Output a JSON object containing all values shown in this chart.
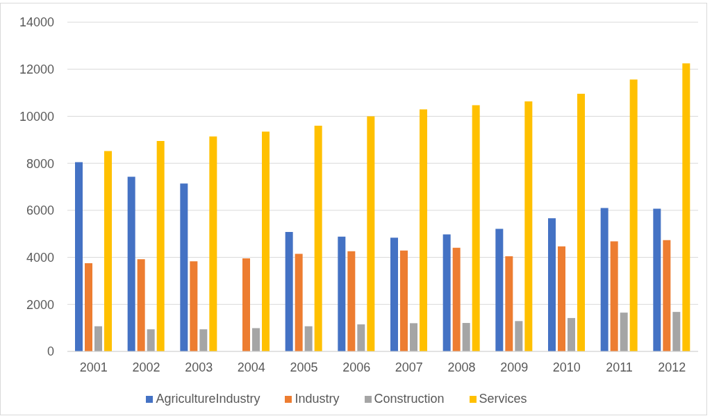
{
  "chart_data": {
    "type": "bar",
    "categories": [
      "2001",
      "2002",
      "2003",
      "2004",
      "2005",
      "2006",
      "2007",
      "2008",
      "2009",
      "2010",
      "2011",
      "2012"
    ],
    "series": [
      {
        "name": "AgricultureIndustry",
        "color": "#4472c4",
        "values": [
          8050,
          7430,
          7140,
          null,
          5080,
          4880,
          4840,
          4980,
          5210,
          5660,
          6100,
          6070
        ]
      },
      {
        "name": "Industry",
        "color": "#ed7d31",
        "values": [
          3750,
          3920,
          3830,
          3960,
          4150,
          4260,
          4290,
          4410,
          4050,
          4470,
          4680,
          4730
        ]
      },
      {
        "name": "Construction",
        "color": "#a5a5a5",
        "values": [
          1070,
          940,
          940,
          990,
          1070,
          1150,
          1200,
          1210,
          1290,
          1420,
          1650,
          1680
        ]
      },
      {
        "name": "Services",
        "color": "#ffc000",
        "values": [
          8520,
          8950,
          9140,
          9350,
          9600,
          10000,
          10290,
          10470,
          10630,
          10960,
          11560,
          12250
        ]
      }
    ],
    "ylim": [
      0,
      14000
    ],
    "yticks": [
      0,
      2000,
      4000,
      6000,
      8000,
      10000,
      12000,
      14000
    ],
    "grid": "y",
    "legend": "bottom"
  }
}
